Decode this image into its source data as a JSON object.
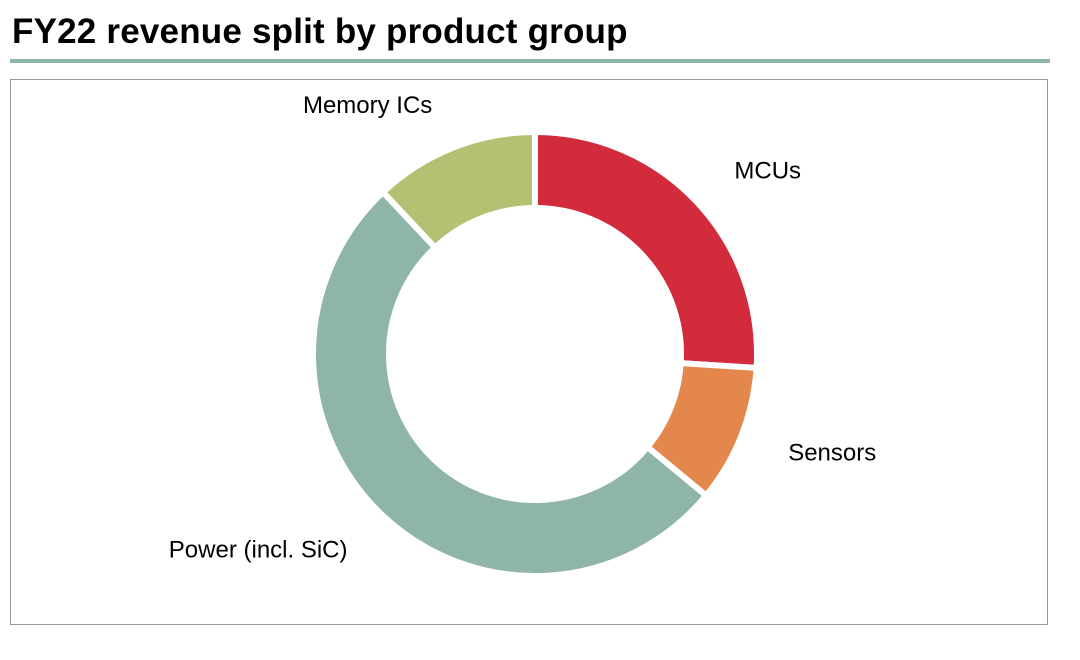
{
  "title": "FY22 revenue split by product group",
  "chart_data": {
    "type": "pie",
    "variant": "donut",
    "title": "FY22 revenue split by product group",
    "legend": "none",
    "slices": [
      {
        "label": "MCUs",
        "value": 26,
        "color": "#d22b3c"
      },
      {
        "label": "Sensors",
        "value": 10,
        "color": "#e3874c"
      },
      {
        "label": "Power (incl. SiC)",
        "value": 52,
        "color": "#8fb5a8"
      },
      {
        "label": "Memory ICs",
        "value": 12,
        "color": "#b3c272"
      }
    ]
  }
}
